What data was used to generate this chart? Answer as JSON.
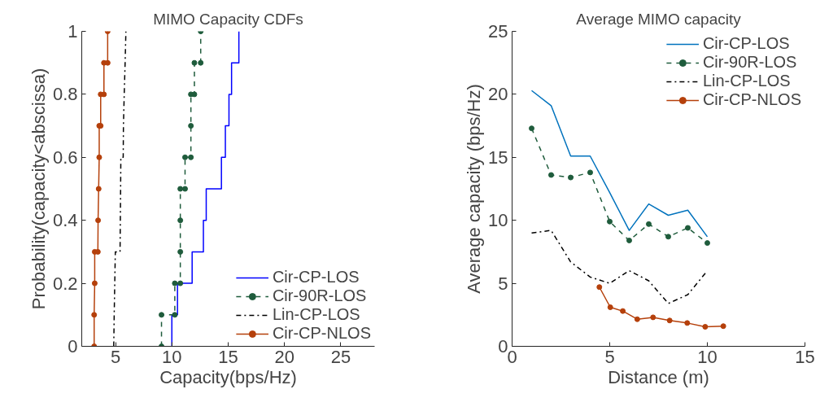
{
  "chart_data": [
    {
      "type": "line",
      "title": "MIMO Capacity CDFs",
      "xlabel": "Capacity(bps/Hz)",
      "ylabel": "Probability(capacity<abscissa)",
      "xlim": [
        2,
        28
      ],
      "xticks": [
        5,
        10,
        15,
        20,
        25
      ],
      "ylim": [
        0,
        1
      ],
      "yticks": [
        0,
        0.2,
        0.4,
        0.6,
        0.8,
        1
      ],
      "grid": false,
      "legend": "bottom right",
      "series": [
        {
          "name": "Cir-CP-LOS",
          "color": "#0000ff",
          "marker": "none",
          "line_style": "solid",
          "x": [
            10.0,
            10.0,
            10.5,
            10.5,
            11.8,
            11.8,
            12.8,
            12.8,
            13.05,
            13.05,
            14.4,
            14.4,
            14.75,
            14.75,
            15.07,
            15.07,
            15.3,
            15.3,
            15.95,
            15.95
          ],
          "values": [
            0,
            0.1,
            0.1,
            0.2,
            0.2,
            0.3,
            0.3,
            0.4,
            0.4,
            0.5,
            0.5,
            0.6,
            0.6,
            0.7,
            0.7,
            0.8,
            0.8,
            0.9,
            0.9,
            1.0
          ]
        },
        {
          "name": "Cir-90R-LOS",
          "color": "#1f5c3c",
          "marker": "circle",
          "line_style": "dashed",
          "x": [
            9.08,
            9.08,
            10.26,
            10.26,
            10.75,
            10.75,
            10.75,
            10.75,
            11.17,
            11.17,
            11.69,
            11.69,
            11.69,
            12.0,
            12.0,
            12.56,
            12.56
          ],
          "values": [
            0,
            0.1,
            0.1,
            0.2,
            0.2,
            0.3,
            0.4,
            0.5,
            0.5,
            0.6,
            0.6,
            0.7,
            0.8,
            0.8,
            0.9,
            0.9,
            1.0
          ]
        },
        {
          "name": "Lin-CP-LOS",
          "color": "#000000",
          "marker": "none",
          "line_style": "dashdot",
          "x": [
            4.84,
            4.88,
            4.93,
            4.98,
            5.4,
            5.45,
            5.47,
            5.68,
            5.7,
            5.77,
            5.85,
            5.92
          ],
          "values": [
            0,
            0.1,
            0.2,
            0.3,
            0.3,
            0.5,
            0.6,
            0.6,
            0.7,
            0.8,
            0.9,
            1.0
          ]
        },
        {
          "name": "Cir-CP-NLOS",
          "color": "#b5400b",
          "marker": "circle",
          "line_style": "solid",
          "x": [
            3.1,
            3.1,
            3.15,
            3.15,
            3.43,
            3.45,
            3.5,
            3.55,
            3.55,
            3.68,
            3.68,
            3.97,
            3.97,
            4.3,
            4.3
          ],
          "values": [
            0,
            0.1,
            0.2,
            0.3,
            0.3,
            0.4,
            0.5,
            0.6,
            0.7,
            0.7,
            0.8,
            0.8,
            0.9,
            0.9,
            1.0
          ]
        }
      ]
    },
    {
      "type": "line",
      "title": "Average MIMO capacity",
      "xlabel": "Distance (m)",
      "ylabel": "Average capacity (bps/Hz)",
      "xlim": [
        0,
        15
      ],
      "xticks": [
        0,
        5,
        10,
        15
      ],
      "ylim": [
        0,
        25
      ],
      "yticks": [
        0,
        5,
        10,
        15,
        20,
        25
      ],
      "grid": false,
      "legend": "top right",
      "series": [
        {
          "name": "Cir-CP-LOS",
          "color": "#0072bd",
          "marker": "none",
          "line_style": "solid",
          "x": [
            1,
            2,
            3,
            4,
            5,
            6,
            7,
            8,
            9,
            10
          ],
          "values": [
            20.3,
            19.1,
            15.1,
            15.1,
            12.2,
            9.2,
            11.3,
            10.4,
            10.8,
            8.7
          ]
        },
        {
          "name": "Cir-90R-LOS",
          "color": "#1f5c3c",
          "marker": "circle",
          "line_style": "dashed",
          "x": [
            1,
            2,
            3,
            4,
            5,
            6,
            7,
            8,
            9,
            10
          ],
          "values": [
            17.3,
            13.6,
            13.4,
            13.8,
            9.9,
            8.4,
            9.7,
            8.7,
            9.4,
            8.2
          ]
        },
        {
          "name": "Lin-CP-LOS",
          "color": "#000000",
          "marker": "none",
          "line_style": "dashdot",
          "x": [
            1,
            2,
            3,
            4,
            5,
            6,
            7,
            8,
            9,
            10
          ],
          "values": [
            9.0,
            9.2,
            6.7,
            5.5,
            5.0,
            6.0,
            5.2,
            3.4,
            4.1,
            6.0
          ]
        },
        {
          "name": "Cir-CP-NLOS",
          "color": "#b5400b",
          "marker": "circle",
          "line_style": "solid",
          "x": [
            4.47,
            5.03,
            5.67,
            6.41,
            7.22,
            8.07,
            8.97,
            9.89,
            10.82
          ],
          "values": [
            4.7,
            3.1,
            2.8,
            2.15,
            2.3,
            2.05,
            1.85,
            1.55,
            1.6
          ]
        }
      ]
    }
  ]
}
